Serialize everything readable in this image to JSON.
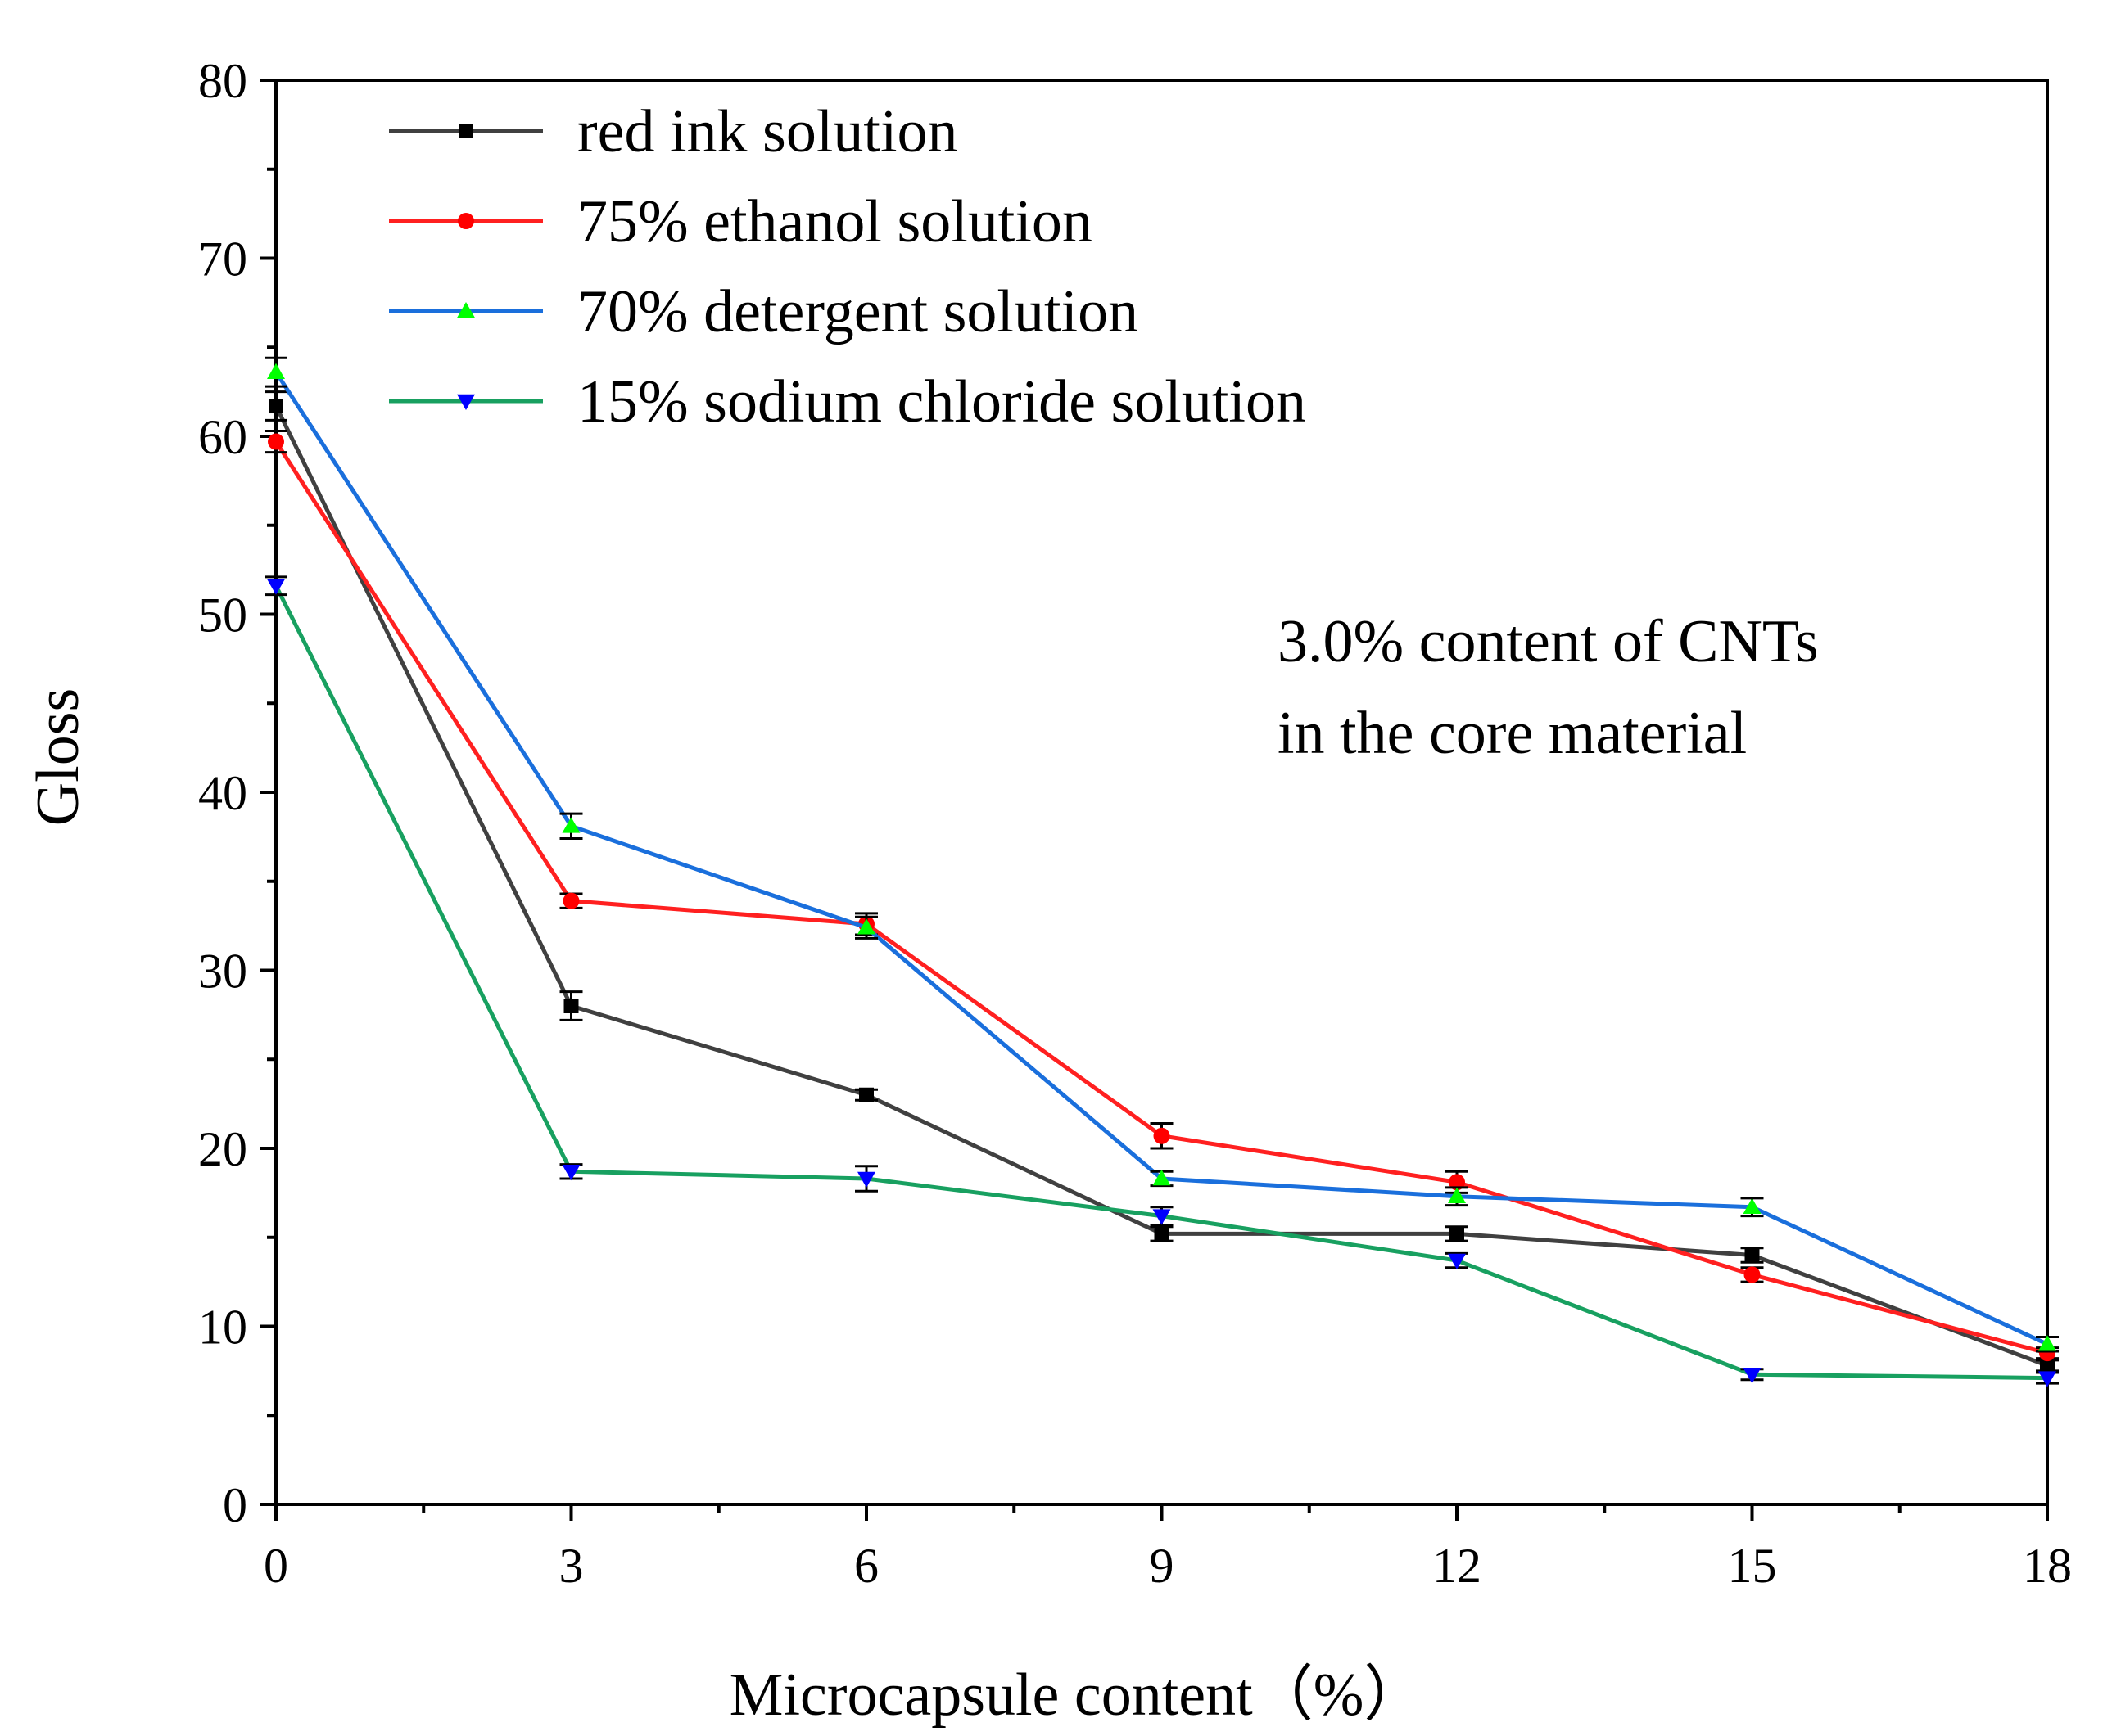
{
  "chart_data": {
    "type": "line",
    "title": "",
    "xlabel": "Microcapsule content（%）",
    "ylabel": "Gloss",
    "xlim": [
      0,
      18
    ],
    "ylim": [
      0,
      80
    ],
    "xticks": [
      "0",
      "3",
      "6",
      "9",
      "12",
      "15",
      "18"
    ],
    "yticks": [
      "0",
      "10",
      "20",
      "30",
      "40",
      "50",
      "60",
      "70",
      "80"
    ],
    "x": [
      0,
      3,
      6,
      9,
      12,
      15,
      18
    ],
    "legend_position": "top-left",
    "annotation": [
      "3.0% content of CNTs",
      "in the core material"
    ],
    "series": [
      {
        "name": "red ink solution",
        "color": "#404040",
        "marker_color": "#000000",
        "marker": "square",
        "values": [
          61.7,
          28.0,
          23.0,
          15.2,
          15.2,
          14.0,
          7.8
        ],
        "errors": [
          0.8,
          0.8,
          0.3,
          0.4,
          0.4,
          0.4,
          0.3
        ]
      },
      {
        "name": "75% ethanol solution",
        "color": "#ff2020",
        "marker_color": "#ff0000",
        "marker": "circle",
        "values": [
          59.7,
          33.9,
          32.6,
          20.7,
          18.1,
          12.9,
          8.5
        ],
        "errors": [
          0.6,
          0.4,
          0.6,
          0.7,
          0.6,
          0.4,
          0.3
        ]
      },
      {
        "name": "70% detergent solution",
        "color": "#1a6fdc",
        "marker_color": "#00ff00",
        "marker": "triangle-up",
        "values": [
          63.6,
          38.1,
          32.4,
          18.3,
          17.3,
          16.7,
          9.0
        ],
        "errors": [
          0.8,
          0.7,
          0.6,
          0.4,
          0.5,
          0.5,
          0.4
        ]
      },
      {
        "name": "15% sodium chloride solution",
        "color": "#18a060",
        "marker_color": "#0000ff",
        "marker": "triangle-down",
        "values": [
          51.6,
          18.7,
          18.3,
          16.2,
          13.7,
          7.3,
          7.1
        ],
        "errors": [
          0.5,
          0.4,
          0.7,
          0.5,
          0.4,
          0.3,
          0.3
        ]
      }
    ]
  }
}
